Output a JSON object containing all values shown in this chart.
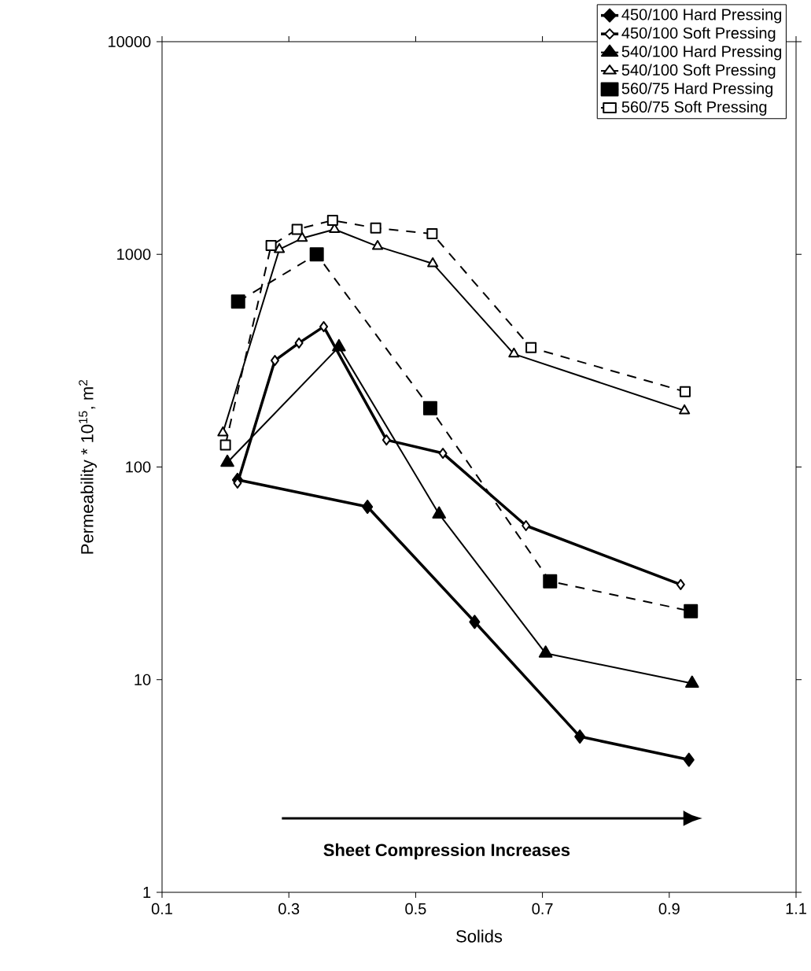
{
  "chart_data": {
    "type": "line",
    "xlabel": "Solids",
    "ylabel": "Permeability * 10$^{15}$, m$^{2}$",
    "xlim": [
      0.1,
      1.1
    ],
    "xticks": [
      0.1,
      0.3,
      0.5,
      0.7,
      0.9,
      1.1
    ],
    "ylim": [
      1,
      10000
    ],
    "yticks": [
      1,
      10,
      100,
      1000,
      10000
    ],
    "log": "y",
    "grid": false,
    "legend": "top right",
    "annotations": [
      "Sheet Compression Increases"
    ],
    "series": [
      {
        "name": "450/100 Hard Pressing",
        "color": "#000000",
        "marker": "diamond",
        "line_style": "solid",
        "x": [
          0.219,
          0.424,
          0.593,
          0.759,
          0.931
        ],
        "values": [
          87,
          65,
          18.7,
          5.4,
          4.2
        ]
      },
      {
        "name": "450/100 Soft Pressing",
        "color": "#000000",
        "marker": "diamond",
        "line_style": "solid",
        "x": [
          0.219,
          0.278,
          0.316,
          0.355,
          0.454,
          0.543,
          0.674,
          0.918
        ],
        "values": [
          84,
          317,
          383,
          457,
          134,
          116,
          53,
          28
        ]
      },
      {
        "name": "540/100 Hard Pressing",
        "color": "#000000",
        "marker": "triangle",
        "line_style": "solid",
        "x": [
          0.203,
          0.379,
          0.537,
          0.705,
          0.936
        ],
        "values": [
          105,
          367,
          60,
          13.3,
          9.6
        ]
      },
      {
        "name": "540/100 Soft Pressing",
        "color": "#000000",
        "marker": "triangle",
        "line_style": "solid",
        "x": [
          0.196,
          0.285,
          0.321,
          0.372,
          0.44,
          0.527,
          0.655,
          0.924
        ],
        "values": [
          145,
          1055,
          1190,
          1310,
          1090,
          905,
          340,
          184
        ]
      },
      {
        "name": "560/75 Hard Pressing",
        "color": "#000000",
        "marker": "square",
        "line_style": "dashed",
        "x": [
          0.22,
          0.344,
          0.523,
          0.712,
          0.934
        ],
        "values": [
          600,
          1000,
          189,
          29,
          21
        ]
      },
      {
        "name": "560/75 Soft Pressing",
        "color": "#000000",
        "marker": "square",
        "line_style": "dashed",
        "x": [
          0.2,
          0.272,
          0.313,
          0.369,
          0.437,
          0.526,
          0.682,
          0.925
        ],
        "values": [
          127,
          1100,
          1310,
          1445,
          1330,
          1250,
          364,
          226
        ]
      }
    ]
  }
}
